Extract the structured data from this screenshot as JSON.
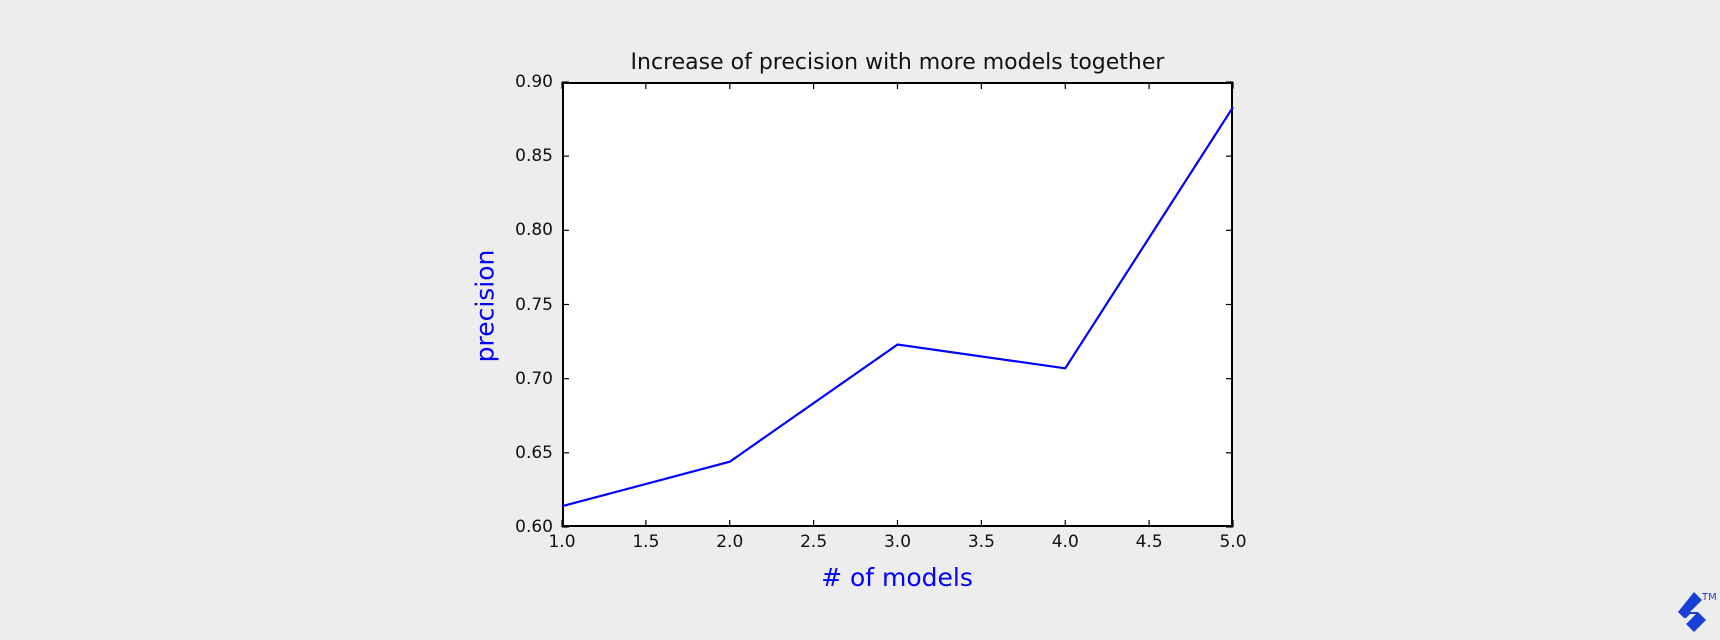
{
  "chart_data": {
    "type": "line",
    "title": "Increase of precision with more models together",
    "xlabel": "# of models",
    "ylabel": "precision",
    "x": [
      1.0,
      2.0,
      3.0,
      4.0,
      5.0
    ],
    "series": [
      {
        "name": "precision",
        "color": "#0000ff",
        "values": [
          0.614,
          0.644,
          0.723,
          0.707,
          0.883
        ]
      }
    ],
    "xlim": [
      1.0,
      5.0
    ],
    "ylim": [
      0.6,
      0.9
    ],
    "xticks": [
      "1.0",
      "1.5",
      "2.0",
      "2.5",
      "3.0",
      "3.5",
      "4.0",
      "4.5",
      "5.0"
    ],
    "yticks": [
      "0.60",
      "0.65",
      "0.70",
      "0.75",
      "0.80",
      "0.85",
      "0.90"
    ],
    "grid": false,
    "legend": null
  },
  "colors": {
    "background": "#ededed",
    "plot_background": "#ffffff",
    "line": "#0000ff",
    "axis_label": "#0000ff",
    "logo": "#1a3fd6"
  },
  "watermark": {
    "icon": "toptal-logo-icon",
    "trademark": "TM"
  }
}
